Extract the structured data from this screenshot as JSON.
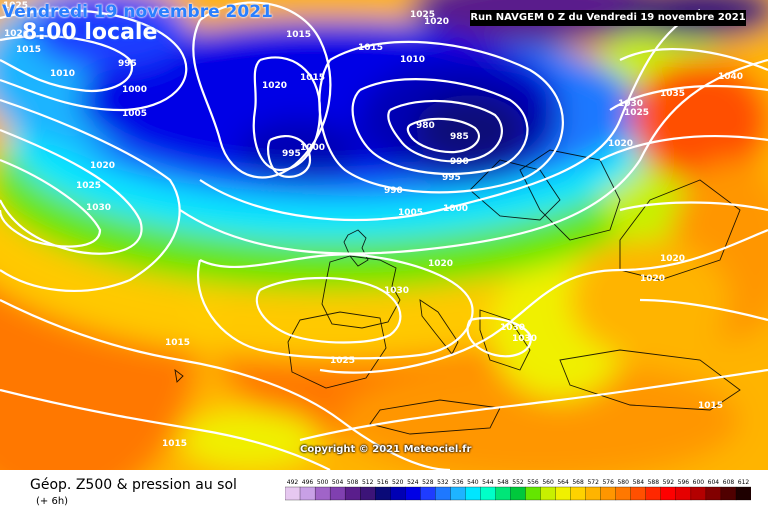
{
  "header": {
    "date_line": "Vendredi 19 novembre 2021",
    "time_line": "8:00 locale",
    "run_info": "Run NAVGEM 0 Z du Vendredi 19 novembre 2021"
  },
  "footer": {
    "product_title": "Géop. Z500 & pression au sol",
    "forecast_step": "(+ 6h)",
    "copyright": "Copyright © 2021 Meteociel.fr"
  },
  "legend": {
    "ticks": [
      "492",
      "496",
      "500",
      "504",
      "508",
      "512",
      "516",
      "520",
      "524",
      "528",
      "532",
      "536",
      "540",
      "544",
      "548",
      "552",
      "556",
      "560",
      "564",
      "568",
      "572",
      "576",
      "580",
      "584",
      "588",
      "592",
      "596",
      "600",
      "604",
      "608",
      "612"
    ],
    "colors": [
      "#e6c8f0",
      "#c8a0e6",
      "#a064c8",
      "#8040b0",
      "#5a1e8c",
      "#3c1478",
      "#0a0a78",
      "#0000b4",
      "#0000e6",
      "#1e3cff",
      "#1e78ff",
      "#1eb4ff",
      "#00e6ff",
      "#00ffc8",
      "#00e678",
      "#00c83c",
      "#64e600",
      "#c8f000",
      "#f0f000",
      "#ffd200",
      "#ffb400",
      "#ff9600",
      "#ff7800",
      "#ff5000",
      "#ff2800",
      "#ff0000",
      "#e60000",
      "#b40000",
      "#820000",
      "#500000",
      "#1e0000"
    ]
  },
  "isobars": {
    "labels": [
      "1025",
      "1020",
      "995",
      "1010",
      "1000",
      "1005",
      "1020",
      "1025",
      "1030",
      "1015",
      "1020",
      "1015",
      "1015",
      "1000",
      "995",
      "1010",
      "1015",
      "1025",
      "1020",
      "980",
      "985",
      "990",
      "990",
      "995",
      "1005",
      "1000",
      "1020",
      "1030",
      "1030",
      "1030",
      "1025",
      "1015",
      "1015",
      "1040",
      "1035",
      "1030",
      "1025",
      "1020",
      "1020",
      "1020",
      "1015"
    ]
  }
}
